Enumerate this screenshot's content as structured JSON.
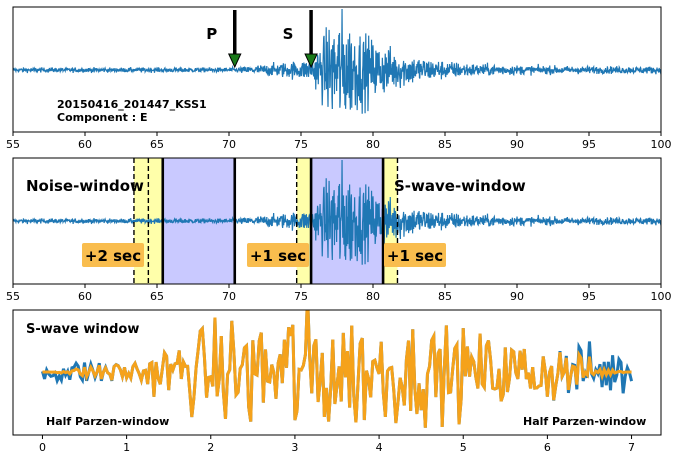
{
  "colors": {
    "trace": "#1f77b4",
    "taper": "#f5a21b",
    "arrow_fill": "#1a7a1a",
    "window_blue": "#c9c9ff",
    "window_yellow": "#ffffaa",
    "tag_bg": "#f9bd4e"
  },
  "chart_data": [
    {
      "type": "line",
      "panel": "top",
      "xlim": [
        55,
        100
      ],
      "xticks": [
        "55",
        "60",
        "65",
        "70",
        "75",
        "80",
        "85",
        "90",
        "95",
        "100"
      ],
      "series": [
        {
          "type": "seismogram",
          "noise_until": 70.4,
          "s_arrival": 75.7,
          "peak_time": 77.6
        }
      ],
      "annotations": {
        "p_label": "P",
        "p_time": 70.4,
        "s_label": "S",
        "s_time": 75.7,
        "station": "20150416_201447_KSS1",
        "component": "Component : E"
      }
    },
    {
      "type": "line",
      "panel": "middle",
      "xlim": [
        55,
        100
      ],
      "xticks": [
        "55",
        "60",
        "65",
        "70",
        "75",
        "80",
        "85",
        "90",
        "95",
        "100"
      ],
      "noise_window": [
        65.4,
        70.4
      ],
      "noise_taper": [
        63.4,
        65.4
      ],
      "noise_taper_mid": 64.4,
      "s_window": [
        75.7,
        80.7
      ],
      "s_taper_left": [
        74.7,
        75.7
      ],
      "s_taper_right": [
        80.7,
        81.7
      ],
      "labels": {
        "noise": "Noise-window",
        "s_wave": "S-wave-window",
        "tag_noise": "+2 sec",
        "tag_s_left": "+1 sec",
        "tag_s_right": "+1 sec"
      }
    },
    {
      "type": "line",
      "panel": "bottom",
      "xlim": [
        -0.35,
        7.35
      ],
      "xticks": [
        "0",
        "1",
        "2",
        "3",
        "4",
        "5",
        "6",
        "7"
      ],
      "series": [
        {
          "name": "raw",
          "color": "#1f77b4",
          "x_range": [
            0,
            7
          ]
        },
        {
          "name": "tapered",
          "color": "#f5a21b",
          "x_range": [
            0,
            7
          ]
        }
      ],
      "labels": {
        "title": "S-wave window",
        "taper_left": "Half Parzen-window",
        "taper_right": "Half Parzen-window"
      }
    }
  ]
}
